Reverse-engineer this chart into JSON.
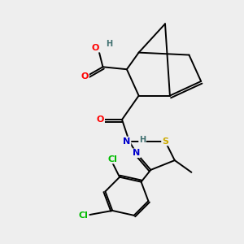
{
  "background_color": "#eeeeee",
  "atom_colors": {
    "O": "#ff0000",
    "N": "#0000cc",
    "S": "#ccaa00",
    "Cl": "#00bb00",
    "H": "#407070",
    "C": "#000000"
  },
  "figsize": [
    3.0,
    3.0
  ],
  "dpi": 100,
  "xlim": [
    0,
    10
  ],
  "ylim": [
    0,
    10
  ]
}
